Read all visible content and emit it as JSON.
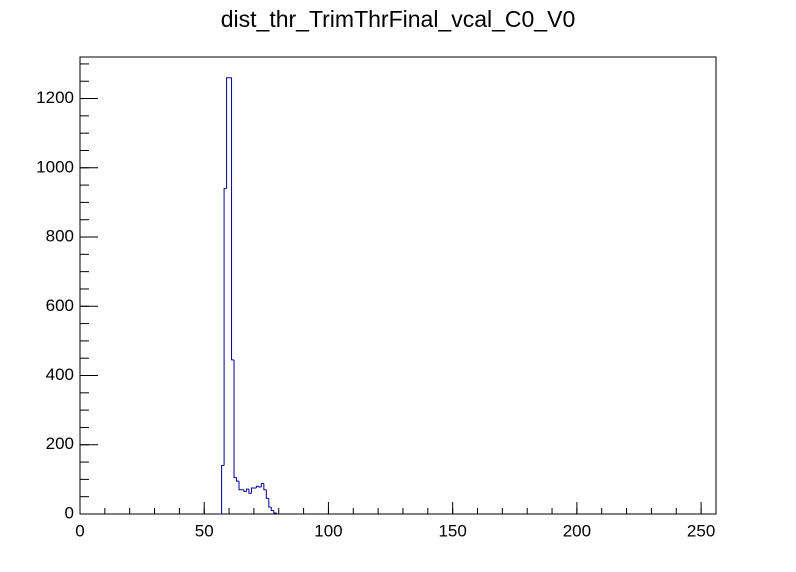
{
  "chart_data": {
    "type": "histogram",
    "title": "dist_thr_TrimThrFinal_vcal_C0_V0",
    "bins": [
      56,
      57,
      58,
      59,
      60,
      61,
      62,
      63,
      64,
      65,
      66,
      67,
      68,
      69,
      70,
      71,
      72,
      73,
      74,
      75,
      76,
      77,
      78,
      79
    ],
    "values": [
      0,
      140,
      940,
      1260,
      1260,
      445,
      105,
      95,
      70,
      70,
      65,
      72,
      60,
      75,
      75,
      80,
      78,
      88,
      70,
      45,
      20,
      10,
      3
    ],
    "color": "#000099",
    "xlim": [
      0,
      256
    ],
    "xticks": [
      0,
      50,
      100,
      150,
      200,
      250
    ],
    "ylim": [
      0,
      1320
    ],
    "yticks": [
      0,
      200,
      400,
      600,
      800,
      1000,
      1200
    ]
  }
}
